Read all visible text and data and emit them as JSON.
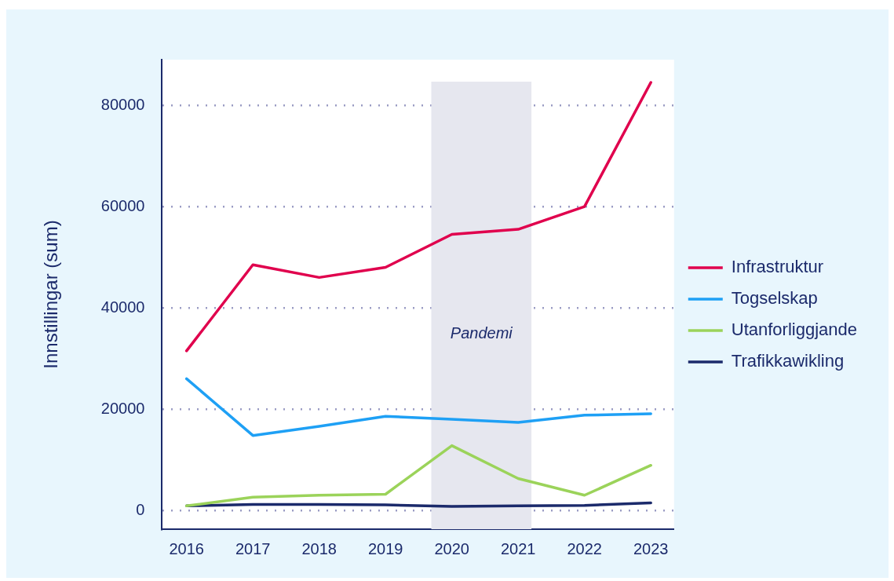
{
  "chart_data": {
    "type": "line",
    "ylabel": "Innstillingar (sum)",
    "x": [
      2016,
      2017,
      2018,
      2019,
      2020,
      2021,
      2022,
      2023
    ],
    "xlim": [
      2015.63,
      2023.35
    ],
    "xticks": [
      2016,
      2017,
      2018,
      2019,
      2020,
      2021,
      2022,
      2023
    ],
    "ylim": [
      -3700,
      89000
    ],
    "yticks": [
      0,
      20000,
      40000,
      60000,
      80000
    ],
    "grid": "y",
    "legend": "right",
    "marker": "none",
    "line_style": "solid",
    "bands": [
      {
        "axis": "x",
        "from": 2019.69,
        "to": 2021.2,
        "label": "Pandemi",
        "color": "#e6e7ef"
      }
    ],
    "series": [
      {
        "name": "Infrastruktur",
        "color": "#e0004d",
        "values": [
          31500,
          48500,
          46000,
          48000,
          54500,
          55500,
          60000,
          84500
        ]
      },
      {
        "name": "Togselskap",
        "color": "#1ea0f5",
        "values": [
          26000,
          14800,
          16600,
          18600,
          18000,
          17400,
          18800,
          19100
        ]
      },
      {
        "name": "Utanforliggjande",
        "color": "#9bd35a",
        "values": [
          900,
          2600,
          3000,
          3200,
          12800,
          6300,
          3000,
          8900
        ]
      },
      {
        "name": "Trafikkawikling",
        "color": "#1b2a6b",
        "values": [
          900,
          1200,
          1200,
          1100,
          800,
          900,
          1000,
          1500
        ]
      }
    ]
  }
}
